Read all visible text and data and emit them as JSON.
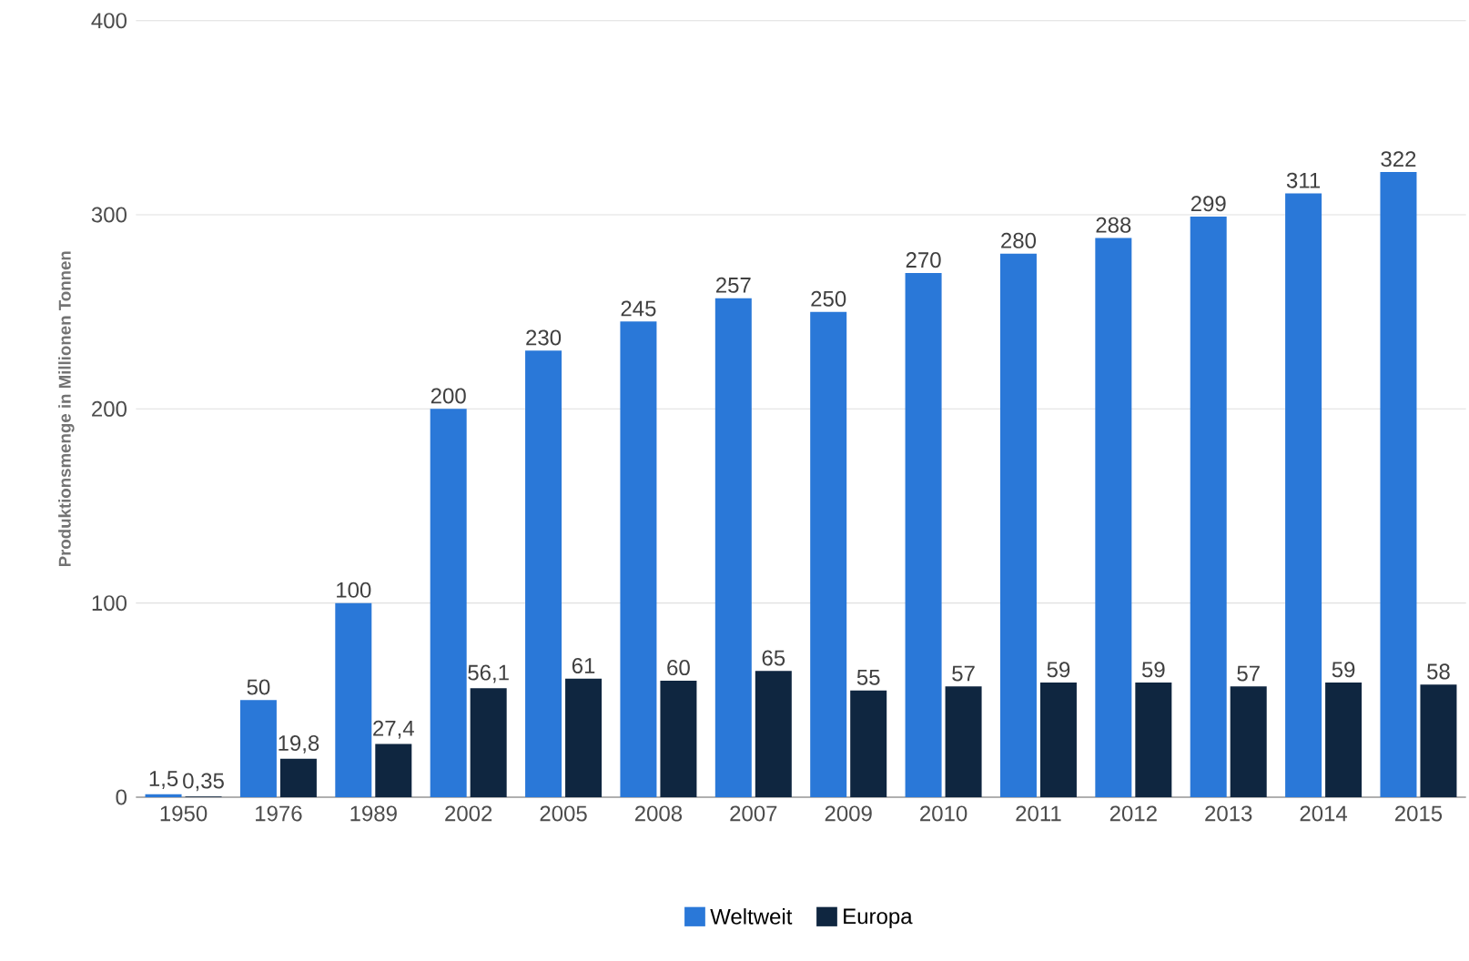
{
  "chart_data": {
    "type": "bar",
    "ylabel": "Produktionsmenge in Millionen Tonnen",
    "categories": [
      "1950",
      "1976",
      "1989",
      "2002",
      "2005",
      "2008",
      "2007",
      "2009",
      "2010",
      "2011",
      "2012",
      "2013",
      "2014",
      "2015"
    ],
    "series": [
      {
        "name": "Weltweit",
        "color": "#2a78d8",
        "values": [
          1.5,
          50,
          100,
          200,
          230,
          245,
          257,
          250,
          270,
          280,
          288,
          299,
          311,
          322
        ],
        "value_labels": [
          "1,5",
          "50",
          "100",
          "200",
          "230",
          "245",
          "257",
          "250",
          "270",
          "280",
          "288",
          "299",
          "311",
          "322"
        ]
      },
      {
        "name": "Europa",
        "color": "#0f2640",
        "values": [
          0.35,
          19.8,
          27.4,
          56.1,
          61,
          60,
          65,
          55,
          57,
          59,
          59,
          57,
          59,
          58
        ],
        "value_labels": [
          "0,35",
          "19,8",
          "27,4",
          "56,1",
          "61",
          "60",
          "65",
          "55",
          "57",
          "59",
          "59",
          "57",
          "59",
          "58"
        ]
      }
    ],
    "ylim": [
      0,
      400
    ],
    "yticks": [
      0,
      100,
      200,
      300,
      400
    ],
    "grid": "y",
    "legend": "bottom"
  }
}
